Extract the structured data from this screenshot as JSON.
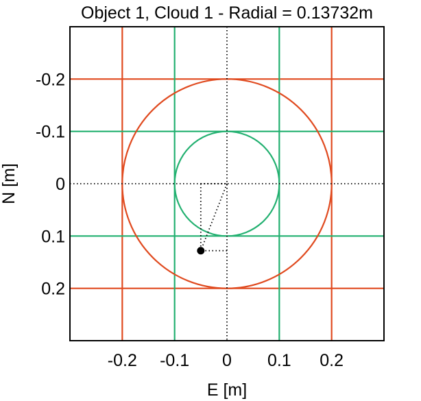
{
  "chart_data": {
    "type": "scatter",
    "title": "Object 1, Cloud 1 - Radial = 0.13732m",
    "xlabel": "E [m]",
    "ylabel": "N [m]",
    "xlim": [
      -0.3,
      0.3
    ],
    "ylim": [
      -0.3,
      0.3
    ],
    "y_axis_reversed": true,
    "grid": false,
    "x_ticks": [
      -0.2,
      -0.1,
      0,
      0.1,
      0.2
    ],
    "x_tick_labels": [
      "-0.2",
      "-0.1",
      "0",
      "0.1",
      "0.2"
    ],
    "y_ticks": [
      -0.2,
      -0.1,
      0,
      0.1,
      0.2
    ],
    "y_tick_labels": [
      "-0.2",
      "-0.1",
      "0",
      "0.1",
      "0.2"
    ],
    "crosshair_axes": {
      "x": 0,
      "y": 0,
      "style": "dotted",
      "color": "#000000"
    },
    "grids": [
      {
        "color": "#e04a1f",
        "positions": [
          -0.2,
          0.2
        ],
        "circle_radius": 0.2
      },
      {
        "color": "#22b070",
        "positions": [
          -0.1,
          0.1
        ],
        "circle_radius": 0.1
      }
    ],
    "points": [
      {
        "x": -0.05,
        "y": 0.128,
        "color": "#000000"
      }
    ],
    "radial": 0.13732
  }
}
